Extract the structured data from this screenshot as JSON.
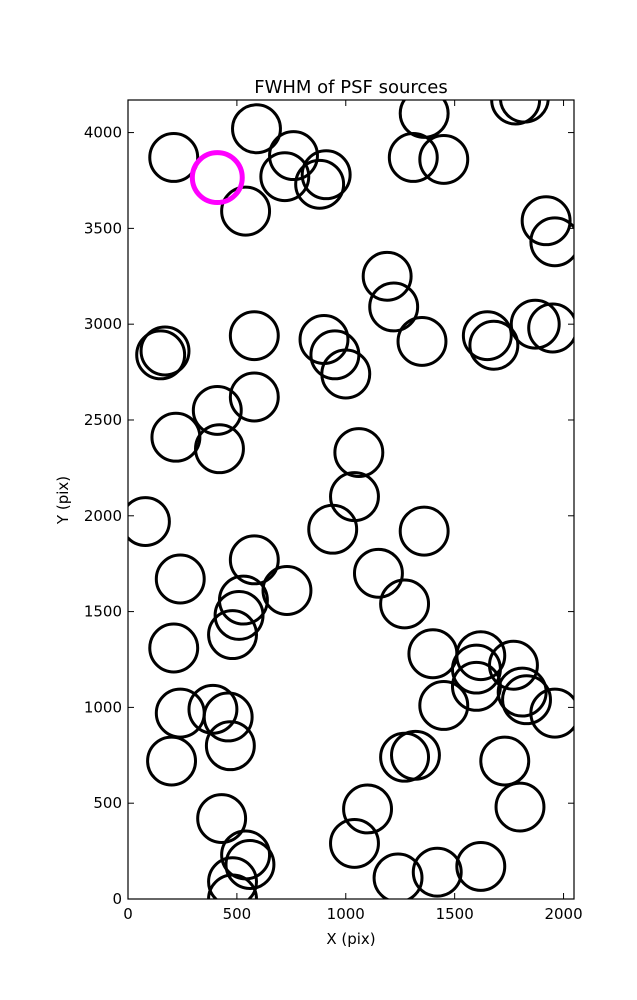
{
  "chart_data": {
    "type": "scatter",
    "title": "FWHM of PSF sources",
    "xlabel": "X (pix)",
    "ylabel": "Y (pix)",
    "xlim": [
      0,
      2048
    ],
    "ylim": [
      0,
      4170
    ],
    "xticks": [
      0,
      500,
      1000,
      1500,
      2000
    ],
    "yticks": [
      0,
      500,
      1000,
      1500,
      2000,
      2500,
      3000,
      3500,
      4000
    ],
    "grid": false,
    "marker": "open circle",
    "circle_radius": 110,
    "highlight_color": "#ff00ff",
    "point_color": "#000000",
    "highlight": {
      "x": 410,
      "y": 3765
    },
    "points": [
      {
        "x": 210,
        "y": 3870
      },
      {
        "x": 590,
        "y": 4020
      },
      {
        "x": 760,
        "y": 3880
      },
      {
        "x": 720,
        "y": 3770
      },
      {
        "x": 910,
        "y": 3780
      },
      {
        "x": 880,
        "y": 3730
      },
      {
        "x": 540,
        "y": 3590
      },
      {
        "x": 1360,
        "y": 4100
      },
      {
        "x": 1310,
        "y": 3870
      },
      {
        "x": 1450,
        "y": 3860
      },
      {
        "x": 1780,
        "y": 4170
      },
      {
        "x": 1820,
        "y": 4180
      },
      {
        "x": 1920,
        "y": 3540
      },
      {
        "x": 1960,
        "y": 3430
      },
      {
        "x": 1190,
        "y": 3250
      },
      {
        "x": 1220,
        "y": 3090
      },
      {
        "x": 1650,
        "y": 2940
      },
      {
        "x": 1680,
        "y": 2890
      },
      {
        "x": 1870,
        "y": 3000
      },
      {
        "x": 1950,
        "y": 2980
      },
      {
        "x": 1350,
        "y": 2910
      },
      {
        "x": 150,
        "y": 2840
      },
      {
        "x": 170,
        "y": 2860
      },
      {
        "x": 580,
        "y": 2940
      },
      {
        "x": 900,
        "y": 2920
      },
      {
        "x": 950,
        "y": 2840
      },
      {
        "x": 1000,
        "y": 2740
      },
      {
        "x": 410,
        "y": 2550
      },
      {
        "x": 580,
        "y": 2620
      },
      {
        "x": 220,
        "y": 2410
      },
      {
        "x": 420,
        "y": 2350
      },
      {
        "x": 1060,
        "y": 2330
      },
      {
        "x": 1040,
        "y": 2100
      },
      {
        "x": 80,
        "y": 1970
      },
      {
        "x": 940,
        "y": 1930
      },
      {
        "x": 1360,
        "y": 1920
      },
      {
        "x": 580,
        "y": 1770
      },
      {
        "x": 240,
        "y": 1670
      },
      {
        "x": 730,
        "y": 1610
      },
      {
        "x": 1150,
        "y": 1700
      },
      {
        "x": 1270,
        "y": 1540
      },
      {
        "x": 530,
        "y": 1560
      },
      {
        "x": 510,
        "y": 1480
      },
      {
        "x": 480,
        "y": 1380
      },
      {
        "x": 210,
        "y": 1310
      },
      {
        "x": 1400,
        "y": 1280
      },
      {
        "x": 1620,
        "y": 1270
      },
      {
        "x": 1600,
        "y": 1200
      },
      {
        "x": 1600,
        "y": 1110
      },
      {
        "x": 1770,
        "y": 1220
      },
      {
        "x": 1810,
        "y": 1080
      },
      {
        "x": 1830,
        "y": 1040
      },
      {
        "x": 1960,
        "y": 970
      },
      {
        "x": 240,
        "y": 970
      },
      {
        "x": 390,
        "y": 990
      },
      {
        "x": 460,
        "y": 950
      },
      {
        "x": 470,
        "y": 800
      },
      {
        "x": 1450,
        "y": 1010
      },
      {
        "x": 1730,
        "y": 720
      },
      {
        "x": 200,
        "y": 720
      },
      {
        "x": 1270,
        "y": 740
      },
      {
        "x": 1320,
        "y": 750
      },
      {
        "x": 430,
        "y": 420
      },
      {
        "x": 1100,
        "y": 470
      },
      {
        "x": 1800,
        "y": 480
      },
      {
        "x": 1040,
        "y": 290
      },
      {
        "x": 540,
        "y": 230
      },
      {
        "x": 560,
        "y": 180
      },
      {
        "x": 480,
        "y": 90
      },
      {
        "x": 480,
        "y": 0
      },
      {
        "x": 1240,
        "y": 110
      },
      {
        "x": 1420,
        "y": 140
      },
      {
        "x": 1620,
        "y": 170
      }
    ]
  }
}
